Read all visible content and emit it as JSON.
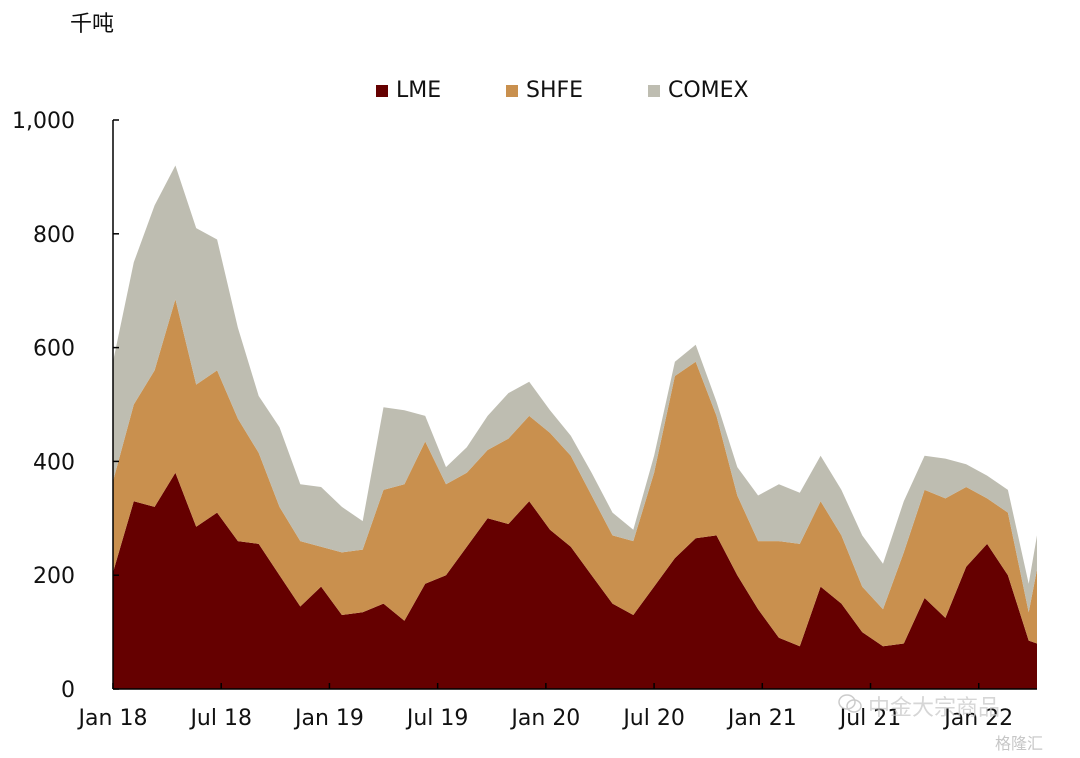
{
  "chart_data": {
    "type": "area",
    "stacked": true,
    "unit_label": "千吨",
    "ylim": [
      0,
      1000
    ],
    "y_ticks": [
      "0",
      "200",
      "400",
      "600",
      "800",
      "1,000"
    ],
    "y_tick_values": [
      0,
      200,
      400,
      600,
      800,
      1000
    ],
    "x_ticks": [
      "Jan 18",
      "Jul 18",
      "Jan 19",
      "Jul 19",
      "Jan 20",
      "Jul 20",
      "Jan 21",
      "Jul 21",
      "Jan 22"
    ],
    "x_tick_positions": [
      0,
      26,
      52,
      78,
      104,
      130,
      156,
      182,
      208
    ],
    "x_range": [
      0,
      222
    ],
    "legend_position": "top-center",
    "grid": false,
    "x": [
      0,
      5,
      10,
      15,
      20,
      25,
      30,
      35,
      40,
      45,
      50,
      55,
      60,
      65,
      70,
      75,
      80,
      85,
      90,
      95,
      100,
      105,
      110,
      115,
      120,
      125,
      130,
      135,
      140,
      145,
      150,
      155,
      160,
      165,
      170,
      175,
      180,
      185,
      190,
      195,
      200,
      205,
      210,
      215,
      220,
      222
    ],
    "series": [
      {
        "name": "LME",
        "color": "#650000",
        "values": [
          205,
          330,
          320,
          380,
          285,
          310,
          260,
          255,
          200,
          145,
          180,
          130,
          135,
          150,
          120,
          185,
          200,
          250,
          300,
          290,
          330,
          280,
          250,
          200,
          150,
          130,
          180,
          230,
          265,
          270,
          200,
          140,
          90,
          75,
          180,
          150,
          100,
          75,
          80,
          160,
          125,
          215,
          255,
          200,
          85,
          80
        ]
      },
      {
        "name": "SHFE",
        "color": "#c9904e",
        "values": [
          160,
          170,
          240,
          305,
          250,
          250,
          215,
          160,
          120,
          115,
          70,
          110,
          110,
          200,
          240,
          250,
          160,
          130,
          120,
          150,
          150,
          170,
          160,
          140,
          120,
          130,
          200,
          320,
          310,
          210,
          140,
          120,
          170,
          180,
          150,
          120,
          80,
          65,
          160,
          190,
          210,
          140,
          80,
          110,
          50,
          130
        ]
      },
      {
        "name": "COMEX",
        "color": "#bebdb1",
        "values": [
          210,
          250,
          290,
          235,
          275,
          230,
          160,
          100,
          140,
          100,
          105,
          80,
          50,
          145,
          130,
          45,
          30,
          45,
          60,
          80,
          60,
          40,
          35,
          40,
          40,
          20,
          30,
          25,
          30,
          25,
          50,
          80,
          100,
          90,
          80,
          80,
          90,
          80,
          90,
          60,
          70,
          40,
          40,
          40,
          50,
          60
        ]
      }
    ]
  },
  "watermark": {
    "text": "中金大宗商品",
    "text2": "格隆汇"
  }
}
